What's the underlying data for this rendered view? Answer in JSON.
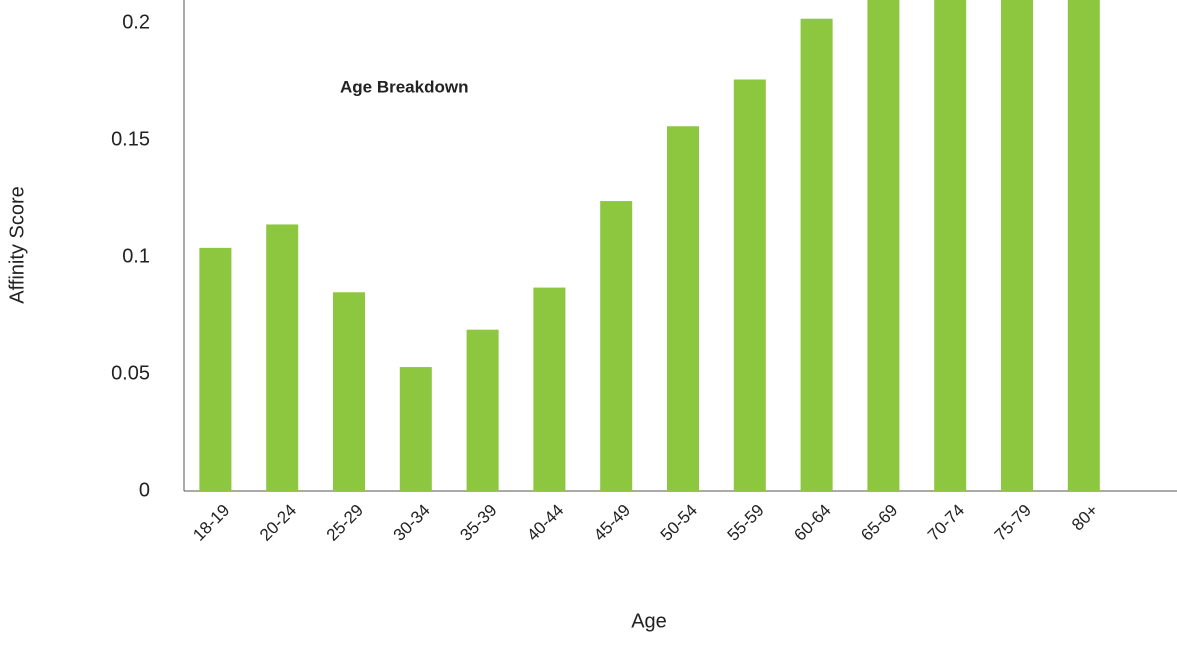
{
  "chart_data": {
    "type": "bar",
    "title": "Age Breakdown",
    "x_label": "Age",
    "y_label": "Affinity Score",
    "categories": [
      "18-19",
      "20-24",
      "25-29",
      "30-34",
      "35-39",
      "40-44",
      "45-49",
      "50-54",
      "55-59",
      "60-64",
      "65-69",
      "70-74",
      "75-79",
      "80+"
    ],
    "values": [
      0.104,
      0.114,
      0.085,
      0.053,
      0.069,
      0.087,
      0.124,
      0.156,
      0.176,
      0.202,
      0.21,
      0.21,
      0.21,
      0.21
    ],
    "color": "#8dc63f",
    "ylim": [
      0,
      0.21
    ],
    "yticks": [
      0,
      0.05,
      0.1,
      0.15,
      0.2
    ],
    "grid": false
  }
}
